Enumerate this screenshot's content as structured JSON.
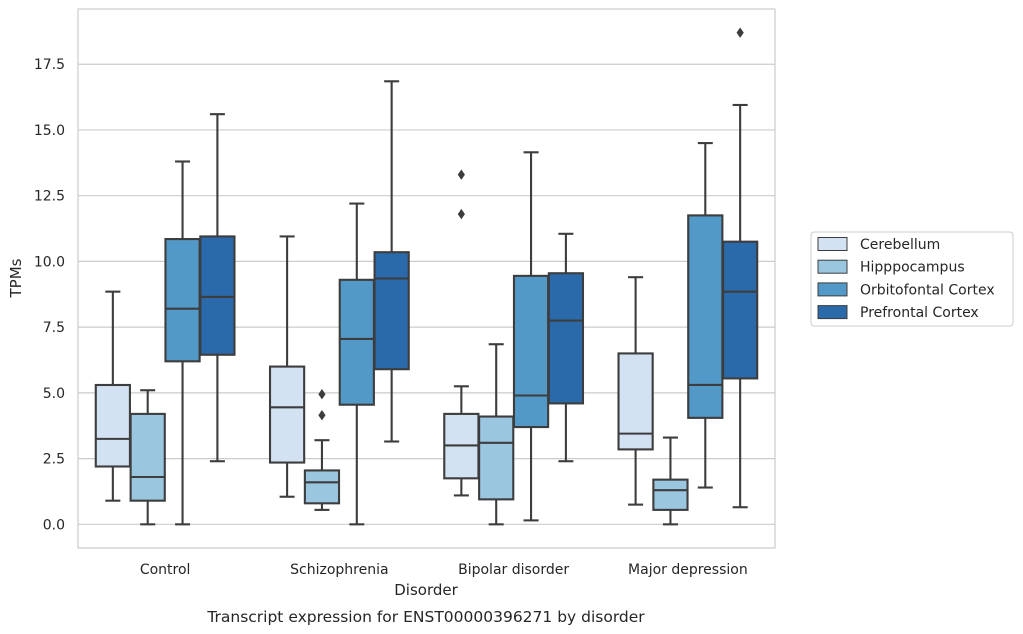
{
  "chart_data": {
    "type": "box",
    "xlabel": "Disorder",
    "ylabel": "TPMs",
    "ylim": [
      -0.9,
      19.6
    ],
    "yticks": [
      0.0,
      2.5,
      5.0,
      7.5,
      10.0,
      12.5,
      15.0,
      17.5
    ],
    "ytick_labels": [
      "0.0",
      "2.5",
      "5.0",
      "7.5",
      "10.0",
      "12.5",
      "15.0",
      "17.5"
    ],
    "grid": "horizontal",
    "legend_position": "right",
    "categories": [
      "Control",
      "Schizophrenia",
      "Bipolar disorder",
      "Major depression"
    ],
    "series": [
      {
        "name": "Cerebellum",
        "color": "#d2e2f2",
        "boxes": [
          {
            "whisker_low": 0.9,
            "q1": 2.2,
            "median": 3.25,
            "q3": 5.3,
            "whisker_high": 8.85,
            "outliers": []
          },
          {
            "whisker_low": 1.05,
            "q1": 2.35,
            "median": 4.45,
            "q3": 6.0,
            "whisker_high": 10.95,
            "outliers": []
          },
          {
            "whisker_low": 1.1,
            "q1": 1.75,
            "median": 3.0,
            "q3": 4.2,
            "whisker_high": 5.25,
            "outliers": [
              11.8,
              13.3
            ]
          },
          {
            "whisker_low": 0.75,
            "q1": 2.85,
            "median": 3.45,
            "q3": 6.5,
            "whisker_high": 9.4,
            "outliers": []
          }
        ]
      },
      {
        "name": "Hipppocampus",
        "color": "#9ac6e0",
        "boxes": [
          {
            "whisker_low": 0.0,
            "q1": 0.9,
            "median": 1.8,
            "q3": 4.2,
            "whisker_high": 5.1,
            "outliers": []
          },
          {
            "whisker_low": 0.55,
            "q1": 0.8,
            "median": 1.6,
            "q3": 2.05,
            "whisker_high": 3.2,
            "outliers": [
              4.15,
              4.95
            ]
          },
          {
            "whisker_low": 0.0,
            "q1": 0.95,
            "median": 3.1,
            "q3": 4.1,
            "whisker_high": 6.85,
            "outliers": []
          },
          {
            "whisker_low": 0.0,
            "q1": 0.55,
            "median": 1.3,
            "q3": 1.7,
            "whisker_high": 3.3,
            "outliers": []
          }
        ]
      },
      {
        "name": "Orbitofontal Cortex",
        "color": "#5299c8",
        "boxes": [
          {
            "whisker_low": 0.0,
            "q1": 6.2,
            "median": 8.2,
            "q3": 10.85,
            "whisker_high": 13.8,
            "outliers": []
          },
          {
            "whisker_low": 0.0,
            "q1": 4.55,
            "median": 7.05,
            "q3": 9.3,
            "whisker_high": 12.2,
            "outliers": []
          },
          {
            "whisker_low": 0.15,
            "q1": 3.7,
            "median": 4.9,
            "q3": 9.45,
            "whisker_high": 14.15,
            "outliers": []
          },
          {
            "whisker_low": 1.4,
            "q1": 4.05,
            "median": 5.3,
            "q3": 11.75,
            "whisker_high": 14.5,
            "outliers": []
          }
        ]
      },
      {
        "name": "Prefrontal Cortex",
        "color": "#2b6aaa",
        "boxes": [
          {
            "whisker_low": 2.4,
            "q1": 6.45,
            "median": 8.65,
            "q3": 10.95,
            "whisker_high": 15.6,
            "outliers": []
          },
          {
            "whisker_low": 3.15,
            "q1": 5.9,
            "median": 9.35,
            "q3": 10.35,
            "whisker_high": 16.85,
            "outliers": []
          },
          {
            "whisker_low": 2.4,
            "q1": 4.6,
            "median": 7.75,
            "q3": 9.55,
            "whisker_high": 11.05,
            "outliers": []
          },
          {
            "whisker_low": 0.65,
            "q1": 5.55,
            "median": 8.85,
            "q3": 10.75,
            "whisker_high": 15.95,
            "outliers": [
              18.7
            ]
          }
        ]
      }
    ],
    "caption": "Transcript expression for ENST00000396271 by disorder"
  }
}
